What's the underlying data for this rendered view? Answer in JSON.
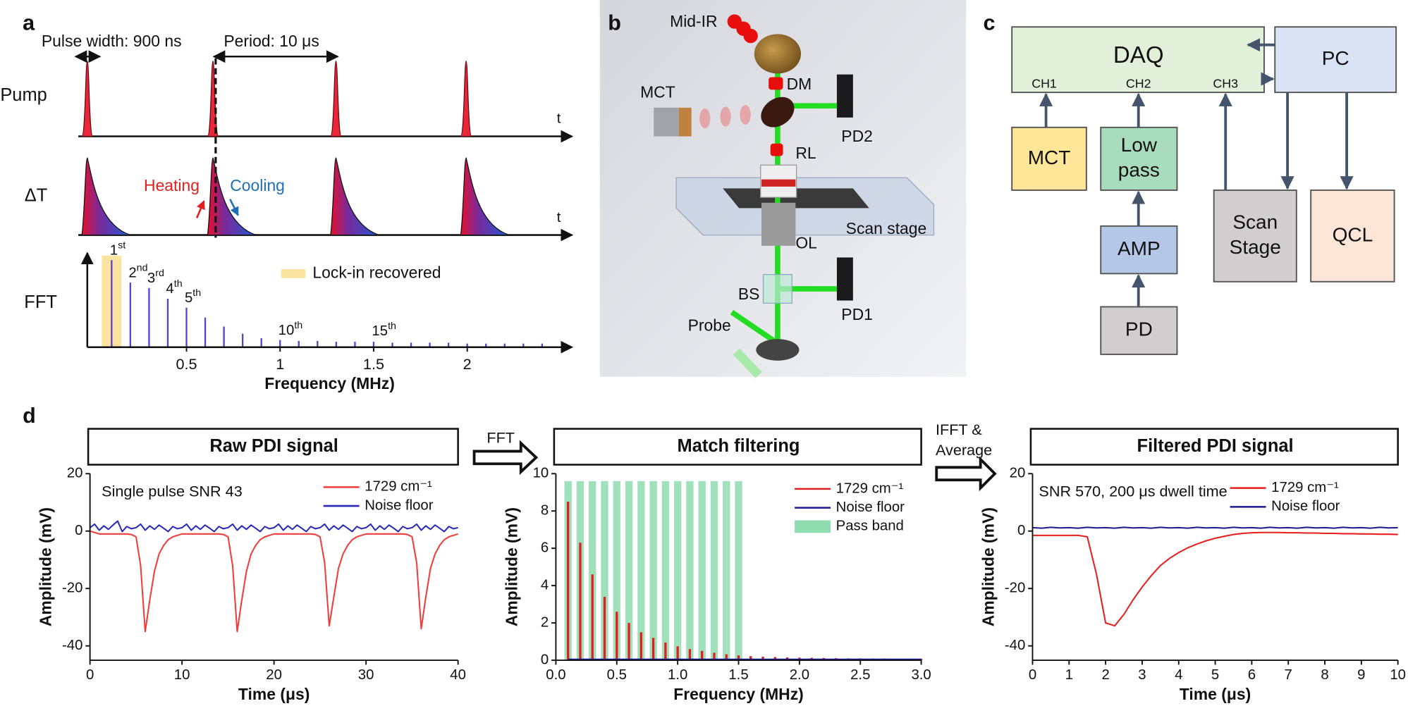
{
  "panel_a": {
    "label": "a",
    "pulse_width": "Pulse width: 900 ns",
    "period": "Period: 10 μs",
    "pump": "Pump",
    "pump_axis": "t",
    "delta_t": "ΔT",
    "delta_t_axis": "t",
    "heating": "Heating",
    "cooling": "Cooling"
  },
  "panel_b": {
    "label": "b",
    "parts": [
      "Mid-IR",
      "DM",
      "MCT",
      "PD2",
      "RL",
      "Scan stage",
      "OL",
      "BS",
      "PD1",
      "Probe"
    ]
  },
  "panel_c": {
    "label": "c",
    "daq": {
      "label": "DAQ",
      "channels": [
        "CH1",
        "CH2",
        "CH3"
      ]
    },
    "nodes": [
      {
        "label": [
          "PC"
        ]
      },
      {
        "label": [
          "MCT"
        ]
      },
      {
        "label": [
          "Low",
          "pass"
        ]
      },
      {
        "label": [
          "AMP"
        ]
      },
      {
        "label": [
          "PD"
        ]
      },
      {
        "label": [
          "Scan",
          "Stage"
        ]
      },
      {
        "label": [
          "QCL"
        ]
      }
    ]
  },
  "panel_d": {
    "label": "d",
    "fft_step": "FFT",
    "ifft_step": [
      "IFFT &",
      "Average"
    ]
  },
  "chart_data": [
    {
      "type": "stem",
      "ylabel": "FFT",
      "xlabel": "Frequency (MHz)",
      "x": [
        0.1,
        0.2,
        0.3,
        0.4,
        0.5,
        0.6,
        0.7,
        0.8,
        0.9,
        1.0,
        1.1,
        1.2,
        1.3,
        1.4,
        1.5,
        1.6,
        1.7,
        1.8,
        1.9,
        2.0,
        2.1,
        2.2,
        2.3,
        2.4
      ],
      "values": [
        97,
        72,
        66,
        54,
        44,
        33,
        23,
        15,
        10,
        8,
        7,
        7,
        6,
        6,
        6,
        5,
        5,
        5,
        5,
        4,
        4,
        4,
        4,
        4
      ],
      "categories": [
        "1st",
        "2nd",
        "3rd",
        "4th",
        "5th",
        null,
        null,
        null,
        null,
        "10th",
        null,
        null,
        null,
        null,
        "15th",
        null,
        null,
        null,
        null,
        null,
        null,
        null,
        null,
        null
      ],
      "color": "#5a3fd0",
      "highlight": {
        "name": "Lock-in recovered",
        "color": "#fbe3a0"
      },
      "xlim": [
        -0.03,
        2.56
      ],
      "ylim": [
        0,
        100
      ],
      "xticks": [
        0.5,
        1,
        1.5,
        2
      ]
    },
    {
      "type": "line",
      "title": "Raw PDI signal",
      "annotation": "Single pulse SNR 43",
      "xlabel": "Time (μs)",
      "ylabel": "Amplitude (mV)",
      "x": [
        0,
        0.5,
        1,
        1.5,
        2,
        2.5,
        3,
        3.5,
        4,
        4.5,
        5,
        5.5,
        6,
        6.5,
        7,
        7.5,
        8,
        8.5,
        9,
        9.5,
        10,
        10.5,
        11,
        11.5,
        12,
        12.5,
        13,
        13.5,
        14,
        14.5,
        15,
        15.5,
        16,
        16.5,
        17,
        17.5,
        18,
        18.5,
        19,
        19.5,
        20,
        20.5,
        21,
        21.5,
        22,
        22.5,
        23,
        23.5,
        24,
        24.5,
        25,
        25.5,
        26,
        26.5,
        27,
        27.5,
        28,
        28.5,
        29,
        29.5,
        30,
        30.5,
        31,
        31.5,
        32,
        32.5,
        33,
        33.5,
        34,
        34.5,
        35,
        35.5,
        36,
        36.5,
        37,
        37.5,
        38,
        38.5,
        39,
        39.5,
        40
      ],
      "series": [
        {
          "name": "1729 cm⁻¹",
          "color": "#f03c3c",
          "values": [
            0,
            -0.5,
            -1,
            -1,
            -1,
            -1,
            -1,
            -1,
            -1,
            -1.2,
            -2,
            -12,
            -35,
            -24,
            -14,
            -8,
            -5,
            -3,
            -2,
            -1.5,
            -1,
            -1,
            -1,
            -1,
            -1,
            -1,
            -1,
            -1,
            -1,
            -1.2,
            -2,
            -12,
            -35,
            -24,
            -14,
            -8,
            -5,
            -3,
            -2,
            -1.5,
            -1,
            -1,
            -1,
            -1,
            -1,
            -1,
            -1,
            -1,
            -1,
            -1.2,
            -2,
            -11,
            -33,
            -23,
            -13,
            -8,
            -5,
            -3,
            -2,
            -1.5,
            -1,
            -1,
            -1,
            -1,
            -1,
            -1,
            -1,
            -1,
            -1,
            -1.2,
            -2,
            -11,
            -34,
            -23,
            -13,
            -8,
            -5,
            -3,
            -2,
            -1.5,
            -1
          ]
        },
        {
          "name": "Noise floor",
          "color": "#2a2ab8",
          "values": [
            1.2,
            2.4,
            0.3,
            1.8,
            0.6,
            2.1,
            3.5,
            -0.2,
            1.6,
            0.8,
            1.2,
            2.4,
            0.3,
            1.8,
            0.6,
            2.1,
            1.0,
            -0.2,
            1.6,
            0.8,
            1.2,
            2.4,
            0.3,
            1.8,
            0.6,
            2.1,
            1.0,
            -0.2,
            1.6,
            0.8,
            1.2,
            2.4,
            0.3,
            1.8,
            0.6,
            2.1,
            1.0,
            -0.2,
            1.6,
            0.8,
            1.2,
            2.4,
            0.3,
            1.8,
            0.6,
            2.1,
            1.0,
            -0.2,
            1.6,
            0.8,
            1.2,
            2.4,
            0.3,
            1.8,
            0.6,
            2.1,
            1.0,
            -0.2,
            1.6,
            0.8,
            1.2,
            2.4,
            0.3,
            1.8,
            0.6,
            2.1,
            1.0,
            -0.2,
            1.6,
            0.8,
            1.2,
            2.4,
            0.3,
            1.8,
            0.6,
            2.1,
            1.0,
            -0.2,
            1.6,
            0.8,
            1.2
          ]
        }
      ],
      "xlim": [
        0,
        40
      ],
      "xticks": [
        0,
        10,
        20,
        30,
        40
      ],
      "ylim": [
        -45,
        20
      ],
      "yticks": [
        -40,
        -20,
        0,
        20
      ]
    },
    {
      "type": "bar",
      "title": "Match filtering",
      "xlabel": "Frequency (MHz)",
      "ylabel": "Amplitude (mV)",
      "x": [
        0.1,
        0.2,
        0.3,
        0.4,
        0.5,
        0.6,
        0.7,
        0.8,
        0.9,
        1.0,
        1.1,
        1.2,
        1.3,
        1.4,
        1.5,
        1.6,
        1.7,
        1.8,
        1.9,
        2.0,
        2.1,
        2.2,
        2.3,
        2.4,
        2.5,
        2.6,
        2.7,
        2.8,
        2.9,
        3.0
      ],
      "series": [
        {
          "name": "1729 cm⁻¹",
          "color": "#e02020",
          "mark": "stem",
          "values": [
            8.5,
            6.3,
            4.6,
            3.4,
            2.6,
            2.0,
            1.5,
            1.2,
            0.95,
            0.75,
            0.6,
            0.5,
            0.4,
            0.32,
            0.26,
            0.22,
            0.19,
            0.17,
            0.15,
            0.14,
            0.13,
            0.12,
            0.11,
            0.1,
            0.1,
            0.09,
            0.09,
            0.08,
            0.08,
            0.08
          ]
        },
        {
          "name": "Noise floor",
          "color": "#1a1a90",
          "mark": "line",
          "values": [
            0.05,
            0.05,
            0.05,
            0.05,
            0.05,
            0.05,
            0.05,
            0.05,
            0.05,
            0.05,
            0.05,
            0.05,
            0.05,
            0.05,
            0.05,
            0.05,
            0.05,
            0.05,
            0.05,
            0.05,
            0.05,
            0.05,
            0.05,
            0.05,
            0.05,
            0.05,
            0.05,
            0.05,
            0.05,
            0.05
          ]
        },
        {
          "name": "Pass band",
          "color": "#8fdcb0",
          "mark": "band",
          "values": [
            9.6,
            9.6,
            9.6,
            9.6,
            9.6,
            9.6,
            9.6,
            9.6,
            9.6,
            9.6,
            9.6,
            9.6,
            9.6,
            9.6,
            9.6,
            null,
            null,
            null,
            null,
            null,
            null,
            null,
            null,
            null,
            null,
            null,
            null,
            null,
            null,
            null
          ]
        }
      ],
      "xlim": [
        0,
        3
      ],
      "xticks": [
        {
          "value": 0,
          "label": "0.0"
        },
        0.5,
        {
          "value": 1,
          "label": "1.0"
        },
        1.5,
        {
          "value": 2,
          "label": "2.0"
        },
        2.5,
        {
          "value": 3,
          "label": "3.0"
        }
      ],
      "ylim": [
        0,
        10
      ],
      "yticks": [
        0,
        2,
        4,
        6,
        8,
        10
      ]
    },
    {
      "type": "line",
      "title": "Filtered PDI signal",
      "annotation": "SNR 570, 200 μs dwell time",
      "xlabel": "Time (μs)",
      "ylabel": "Amplitude (mV)",
      "x": [
        0,
        0.25,
        0.5,
        0.75,
        1,
        1.25,
        1.5,
        1.75,
        2,
        2.25,
        2.5,
        2.75,
        3,
        3.25,
        3.5,
        3.75,
        4,
        4.25,
        4.5,
        4.75,
        5,
        5.25,
        5.5,
        5.75,
        6,
        6.25,
        6.5,
        6.75,
        7,
        7.25,
        7.5,
        7.75,
        8,
        8.25,
        8.5,
        8.75,
        9,
        9.25,
        9.5,
        9.75,
        10
      ],
      "series": [
        {
          "name": "1729 cm⁻¹",
          "color": "#e81e1e",
          "values": [
            -1.5,
            -1.5,
            -1.5,
            -1.5,
            -1.5,
            -1.5,
            -2,
            -15,
            -32,
            -33,
            -29,
            -24,
            -19.5,
            -15.5,
            -12,
            -9.5,
            -7.5,
            -5.8,
            -4.5,
            -3.4,
            -2.5,
            -1.8,
            -1.2,
            -0.8,
            -0.6,
            -0.5,
            -0.5,
            -0.5,
            -0.6,
            -0.6,
            -0.7,
            -0.7,
            -0.8,
            -0.8,
            -0.9,
            -0.9,
            -1,
            -1,
            -1.1,
            -1.1,
            -1.2
          ]
        },
        {
          "name": "Noise floor",
          "color": "#1a1a90",
          "values": [
            1.2,
            1.0,
            1.3,
            1.1,
            1.2,
            1.0,
            1.3,
            1.1,
            1.2,
            1.0,
            1.3,
            1.1,
            1.2,
            1.0,
            1.3,
            1.1,
            1.2,
            1.0,
            1.3,
            1.1,
            1.2,
            1.0,
            1.3,
            1.1,
            1.2,
            1.0,
            1.3,
            1.1,
            1.2,
            1.0,
            1.3,
            1.1,
            1.2,
            1.0,
            1.3,
            1.1,
            1.2,
            1.0,
            1.3,
            1.1,
            1.2
          ]
        }
      ],
      "xlim": [
        0,
        10
      ],
      "xticks": [
        0,
        1,
        2,
        3,
        4,
        5,
        6,
        7,
        8,
        9,
        10
      ],
      "ylim": [
        -45,
        20
      ],
      "yticks": [
        -40,
        -20,
        0,
        20
      ]
    }
  ]
}
